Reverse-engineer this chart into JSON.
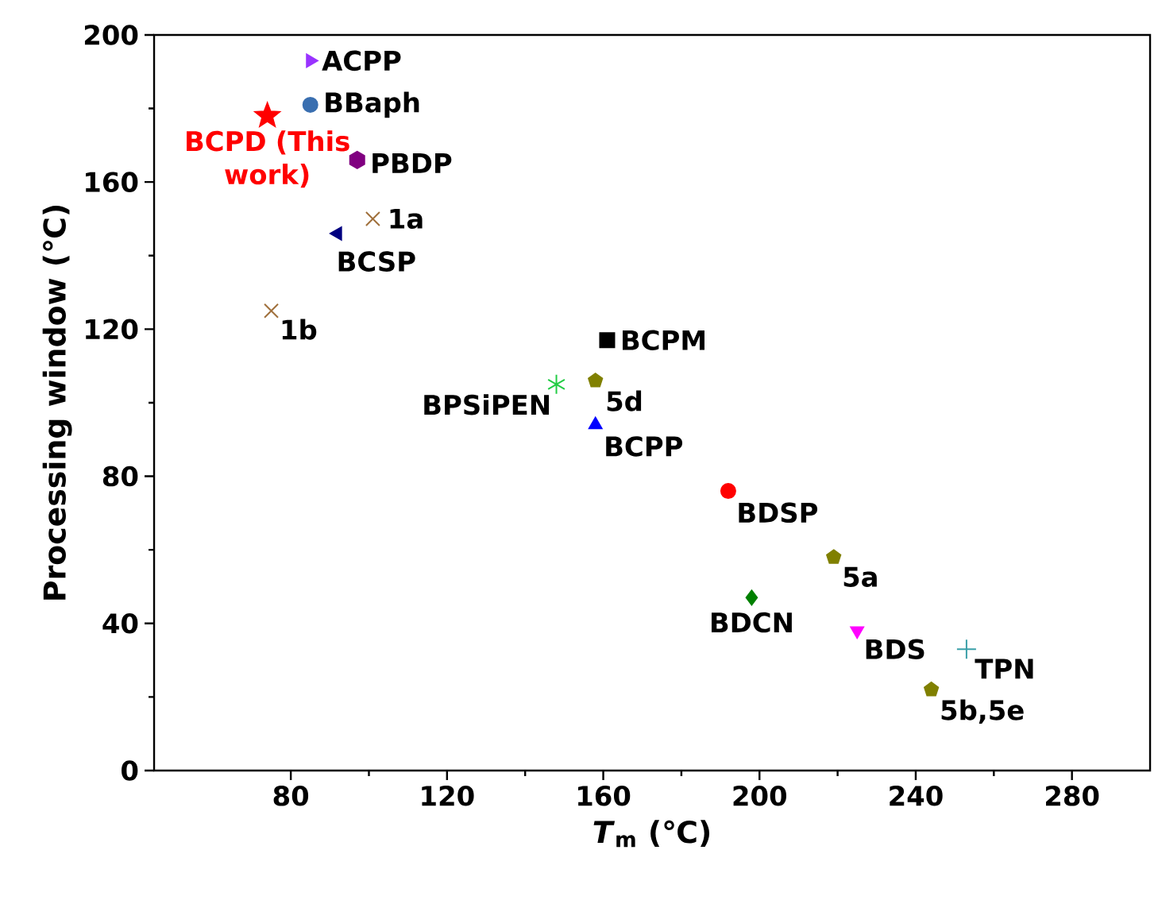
{
  "chart_data": {
    "type": "scatter",
    "xlabel": "*T*$_{m}$ (℃)",
    "ylabel": "Processing window (℃)",
    "xlim": [
      45,
      300
    ],
    "ylim": [
      0,
      200
    ],
    "xticks": [
      80,
      120,
      160,
      200,
      240,
      280
    ],
    "yticks": [
      0,
      40,
      80,
      120,
      160,
      200
    ],
    "grid": false,
    "series": [
      {
        "color": "#9933ff",
        "marker": "triangle-right",
        "x": [
          85
        ],
        "values": [
          193
        ]
      },
      {
        "color": "#3a6fb0",
        "marker": "circle",
        "x": [
          85
        ],
        "values": [
          181
        ]
      },
      {
        "color": "#ff0000",
        "marker": "star",
        "x": [
          74
        ],
        "values": [
          178
        ]
      },
      {
        "color": "#800080",
        "x": [
          97
        ],
        "values": [
          166
        ]
      },
      {
        "color": "#a0703c",
        "marker": "cross",
        "x": [
          101
        ],
        "values": [
          150
        ]
      },
      {
        "color": "#000080",
        "marker": "triangle-left",
        "x": [
          92
        ],
        "values": [
          146
        ]
      },
      {
        "color": "#a0703c",
        "marker": "cross",
        "x": [
          75
        ],
        "values": [
          125
        ]
      },
      {
        "color": "#000000",
        "marker": "square",
        "x": [
          161
        ],
        "values": [
          117
        ]
      },
      {
        "color": "#22cc44",
        "x": [
          148
        ],
        "values": [
          105
        ]
      },
      {
        "color": "#808000",
        "x": [
          158
        ],
        "values": [
          106
        ]
      },
      {
        "color": "#0000ff",
        "marker": "triangle",
        "x": [
          158
        ],
        "values": [
          94
        ]
      },
      {
        "color": "#ff0000",
        "marker": "circle",
        "x": [
          192
        ],
        "values": [
          76
        ]
      },
      {
        "color": "#808000",
        "x": [
          219
        ],
        "values": [
          58
        ]
      },
      {
        "color": "#008000",
        "marker": "diamond",
        "x": [
          198
        ],
        "values": [
          47
        ]
      },
      {
        "color": "#ff00ff",
        "marker": "triangle-down",
        "x": [
          225
        ],
        "values": [
          38
        ]
      },
      {
        "color": "#3a9fa8",
        "marker": "plus",
        "x": [
          253
        ],
        "values": [
          33
        ]
      },
      {
        "color": "#808000",
        "x": [
          244
        ],
        "values": [
          22
        ]
      }
    ],
    "annotations": [
      {
        "text": "ACPP",
        "x": 85,
        "y": 193
      },
      {
        "text": "BBaph",
        "x": 85,
        "y": 181
      },
      {
        "text": "BCPD (This work)",
        "x": 74,
        "y": 178
      },
      {
        "text": "PBDP",
        "x": 97,
        "y": 166
      },
      {
        "text": "1a",
        "x": 101,
        "y": 150
      },
      {
        "text": "BCSP",
        "x": 92,
        "y": 146
      },
      {
        "text": "1b",
        "x": 75,
        "y": 125
      },
      {
        "text": "BCPM",
        "x": 161,
        "y": 117
      },
      {
        "text": "BPSiPEN",
        "x": 148,
        "y": 105
      },
      {
        "text": "5d",
        "x": 158,
        "y": 106
      },
      {
        "text": "BCPP",
        "x": 158,
        "y": 94
      },
      {
        "text": "BDSP",
        "x": 192,
        "y": 76
      },
      {
        "text": "5a",
        "x": 219,
        "y": 58
      },
      {
        "text": "BDCN",
        "x": 198,
        "y": 47
      },
      {
        "text": "BDS",
        "x": 225,
        "y": 38
      },
      {
        "text": "TPN",
        "x": 253,
        "y": 33
      },
      {
        "text": "5b,5e",
        "x": 244,
        "y": 22
      }
    ]
  }
}
